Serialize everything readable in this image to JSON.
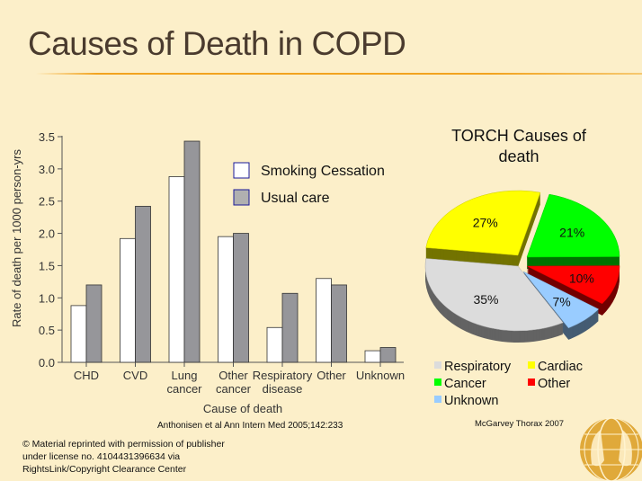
{
  "slide": {
    "title": "Causes of Death in COPD",
    "citation_left": "Anthonisen et al Ann Intern Med 2005;142:233",
    "citation_right": "McGarvey Thorax 2007",
    "copyright": "© Material reprinted with permission of publisher under license no. 4104431396634 via RightsLink/Copyright Clearance Center",
    "accent_color": "#f2a31f",
    "background_color": "#fcefc9"
  },
  "chart_data": [
    {
      "type": "bar",
      "title": "",
      "xlabel": "Cause of death",
      "ylabel": "Rate of death per 1000 person-yrs",
      "ylim": [
        0,
        3.5
      ],
      "yticks": [
        "0.0",
        "0.5",
        "1.0",
        "1.5",
        "2.0",
        "2.5",
        "3.0",
        "3.5"
      ],
      "categories": [
        [
          "CHD"
        ],
        [
          "CVD"
        ],
        [
          "Lung",
          "cancer"
        ],
        [
          "Other",
          "cancer"
        ],
        [
          "Respiratory",
          "disease"
        ],
        [
          "Other"
        ],
        [
          "Unknown"
        ]
      ],
      "series": [
        {
          "name": "Smoking Cessation",
          "color": "#ffffff",
          "values": [
            0.88,
            1.92,
            2.88,
            1.95,
            0.54,
            1.3,
            0.18
          ]
        },
        {
          "name": "Usual care",
          "color": "#96969a",
          "values": [
            1.2,
            2.42,
            3.43,
            2.0,
            1.07,
            1.2,
            0.23
          ]
        }
      ],
      "legend": "top-right",
      "grid": false
    },
    {
      "type": "pie",
      "title": "TORCH Causes of death",
      "slices": [
        {
          "label": "Cancer",
          "value": 21,
          "data_label": "21%",
          "color": "#00ff00"
        },
        {
          "label": "Other",
          "value": 10,
          "data_label": "10%",
          "color": "#ff0000"
        },
        {
          "label": "Unknown",
          "value": 7,
          "data_label": "7%",
          "color": "#99ccff"
        },
        {
          "label": "Respiratory",
          "value": 35,
          "data_label": "35%",
          "color": "#dcdcdc"
        },
        {
          "label": "Cardiac",
          "value": 27,
          "data_label": "27%",
          "color": "#ffff00"
        }
      ],
      "legend_order": [
        "Respiratory",
        "Cardiac",
        "Cancer",
        "Other",
        "Unknown"
      ],
      "legend": "bottom",
      "style": "3d-exploded"
    }
  ]
}
